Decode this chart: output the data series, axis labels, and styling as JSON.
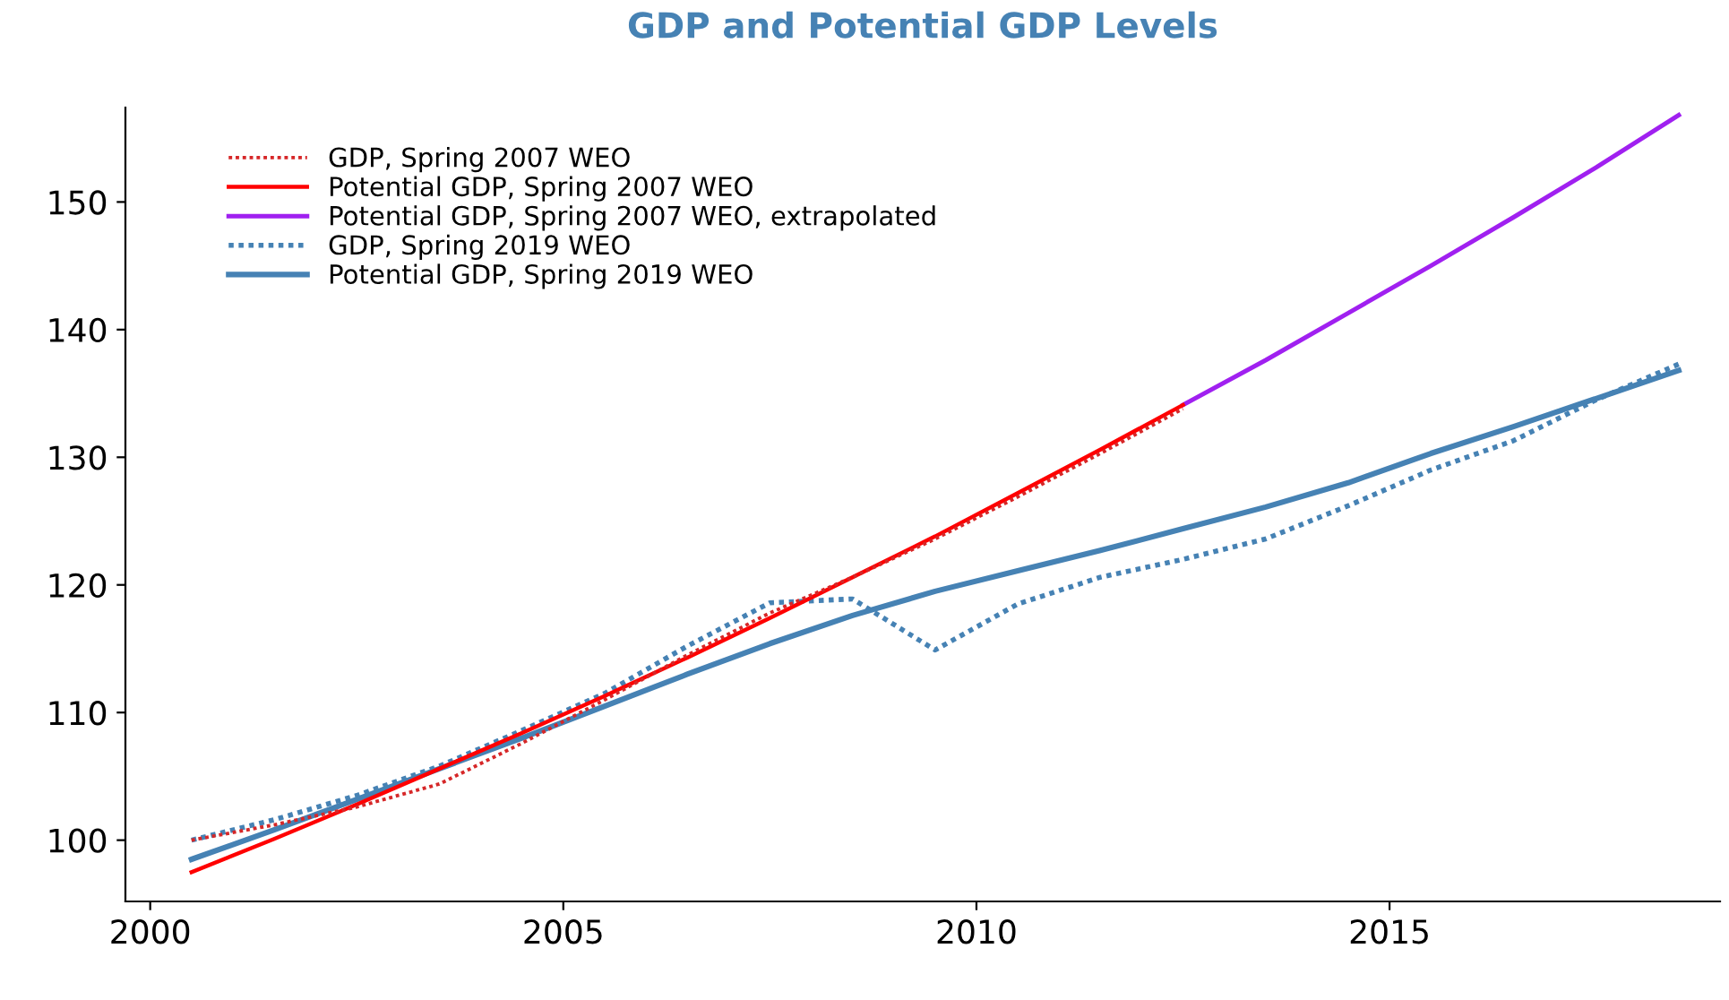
{
  "chart_data": {
    "type": "line",
    "title": "GDP and Potential GDP Levels",
    "x": [
      2000.5,
      2001.5,
      2002.5,
      2003.5,
      2004.5,
      2005.5,
      2006.5,
      2007.5,
      2008.5,
      2009.5,
      2010.5,
      2011.5,
      2012.5,
      2013.5,
      2014.5,
      2015.5,
      2016.5,
      2017.5,
      2018.5
    ],
    "series": [
      {
        "name": "GDP, Spring 2007 WEO",
        "color": "#d62728",
        "line_style": "dotted",
        "values": [
          100,
          101.2,
          102.6,
          104.4,
          107.6,
          111.0,
          114.5,
          117.8,
          120.6,
          123.6,
          126.9,
          130.3,
          133.8,
          null,
          null,
          null,
          null,
          null,
          null
        ]
      },
      {
        "name": "Potential GDP, Spring 2007 WEO",
        "color": "#ff0000",
        "line_style": "solid",
        "values": [
          97.5,
          100.1,
          102.8,
          105.6,
          108.4,
          111.3,
          114.3,
          117.4,
          120.6,
          123.8,
          127.2,
          130.6,
          134.1,
          null,
          null,
          null,
          null,
          null,
          null
        ]
      },
      {
        "name": "Potential GDP, Spring 2007 WEO, extrapolated",
        "color": "#a020f0",
        "line_style": "solid",
        "values": [
          null,
          null,
          null,
          null,
          null,
          null,
          null,
          null,
          null,
          null,
          null,
          null,
          134.1,
          137.6,
          141.3,
          145.0,
          148.8,
          152.7,
          156.8
        ]
      },
      {
        "name": "GDP, Spring 2019 WEO",
        "color": "#4682b4",
        "line_style": "dotted",
        "values": [
          100,
          101.6,
          103.5,
          105.8,
          108.6,
          111.5,
          115.2,
          118.6,
          118.9,
          114.9,
          118.5,
          120.6,
          122.0,
          123.6,
          126.2,
          129.0,
          131.3,
          134.5,
          137.3
        ]
      },
      {
        "name": "Potential GDP, Spring 2019 WEO",
        "color": "#4682b4",
        "line_style": "solid",
        "values": [
          98.5,
          100.8,
          103.2,
          105.6,
          108.0,
          110.5,
          113.0,
          115.4,
          117.6,
          119.5,
          121.1,
          122.7,
          124.4,
          126.1,
          128.0,
          130.3,
          132.4,
          134.6,
          136.8
        ]
      }
    ],
    "xlim": [
      1999.7,
      2019.0
    ],
    "xticks": [
      2000,
      2005,
      2010,
      2015
    ],
    "ylim": [
      95.2,
      157.4
    ],
    "yticks": [
      100,
      110,
      120,
      130,
      140,
      150
    ],
    "grid": false,
    "legend": "top left",
    "marker": "none"
  }
}
